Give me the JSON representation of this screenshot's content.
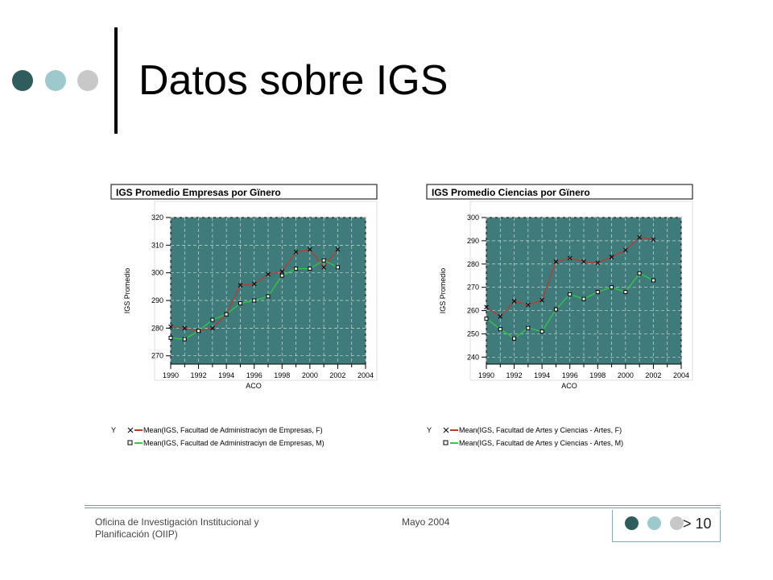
{
  "slide": {
    "title": "Datos sobre IGS",
    "footer_org": "Oficina de Investigación Institucional y Planificación (OIIP)",
    "footer_date": "Mayo 2004",
    "page_number": "> 10",
    "colors": {
      "dot_dark": "#2f5d5d",
      "dot_light": "#9cc9cc",
      "dot_gray": "#c8c8c8"
    }
  },
  "chart_data": [
    {
      "type": "line",
      "title": "IGS Promedio Empresas por Gїnero",
      "xlabel": "ACO",
      "ylabel": "IGS Promedio",
      "x": [
        1990,
        1991,
        1992,
        1993,
        1994,
        1995,
        1996,
        1997,
        1998,
        1999,
        2000,
        2001,
        2002
      ],
      "xticks": [
        "1990",
        "1992",
        "1994",
        "1996",
        "1998",
        "2000",
        "2002",
        "2004"
      ],
      "yticks": [
        "270",
        "280",
        "290",
        "300",
        "310",
        "320"
      ],
      "xlim": [
        1990,
        2004
      ],
      "ylim": [
        267,
        320
      ],
      "grid": true,
      "legend_prefix": "Y",
      "series": [
        {
          "name": "Mean(IGS, Facultad de Administraciyn de Empresas, F)",
          "color": "#c0392b",
          "marker": "x",
          "values": [
            280.5,
            280,
            279,
            280,
            285,
            295.5,
            296,
            299.5,
            300.5,
            307.5,
            308.5,
            302,
            308.5
          ]
        },
        {
          "name": "Mean(IGS, Facultad de Administraciyn de Empresas, M)",
          "color": "#2ecc40",
          "marker": "square",
          "values": [
            276.5,
            276,
            279,
            283,
            285,
            289,
            290,
            291.5,
            299,
            301.5,
            301.5,
            304.5,
            302
          ]
        }
      ]
    },
    {
      "type": "line",
      "title": "IGS Promedio Ciencias por Gїnero",
      "xlabel": "ACO",
      "ylabel": "IGS Promedio",
      "x": [
        1990,
        1991,
        1992,
        1993,
        1994,
        1995,
        1996,
        1997,
        1998,
        1999,
        2000,
        2001,
        2002
      ],
      "xticks": [
        "1990",
        "1992",
        "1994",
        "1996",
        "1998",
        "2000",
        "2002",
        "2004"
      ],
      "yticks": [
        "240",
        "250",
        "260",
        "270",
        "280",
        "290",
        "300"
      ],
      "xlim": [
        1990,
        2004
      ],
      "ylim": [
        237,
        300
      ],
      "grid": true,
      "legend_prefix": "Y",
      "series": [
        {
          "name": "Mean(IGS, Facultad de Artes y Ciencias - Artes, F)",
          "color": "#c0392b",
          "marker": "x",
          "values": [
            261.5,
            257.5,
            264,
            262.5,
            264.5,
            281,
            282.5,
            281,
            280.5,
            283,
            286,
            291.5,
            290.5
          ]
        },
        {
          "name": "Mean(IGS, Facultad de Artes y Ciencias - Artes, M)",
          "color": "#2ecc40",
          "marker": "square",
          "values": [
            256.5,
            252,
            248,
            252.5,
            251,
            260.5,
            267,
            265,
            268,
            270,
            268,
            276,
            273
          ]
        }
      ]
    }
  ]
}
